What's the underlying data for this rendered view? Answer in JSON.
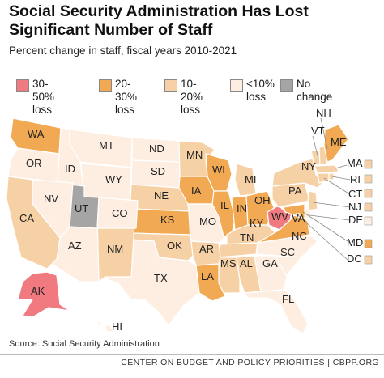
{
  "title": "Social Security Administration Has Lost Significant Number of Staff",
  "subtitle": "Percent change in staff, fiscal years 2010-2021",
  "legend": [
    {
      "line1": "30-50%",
      "line2": "loss",
      "color": "#f07a80"
    },
    {
      "line1": "20-30%",
      "line2": "loss",
      "color": "#f2a954"
    },
    {
      "line1": "10-20%",
      "line2": "loss",
      "color": "#f7d1a6"
    },
    {
      "line1": "<10%",
      "line2": "loss",
      "color": "#fdeee1"
    },
    {
      "line1": "No change",
      "line2": "",
      "color": "#a5a5a5"
    }
  ],
  "colors": {
    "c30_50": "#f07a80",
    "c20_30": "#f2a954",
    "c10_20": "#f7d1a6",
    "clt10": "#fdeee1",
    "nochange": "#a5a5a5"
  },
  "states": {
    "WA": "20-30",
    "OR": "<10",
    "ID": "<10",
    "MT": "<10",
    "WY": "<10",
    "ND": "<10",
    "SD": "<10",
    "NE": "10-20",
    "KS": "20-30",
    "MN": "10-20",
    "IA": "20-30",
    "MO": "<10",
    "WI": "20-30",
    "IL": "20-30",
    "MI": "10-20",
    "IN": "20-30",
    "OH": "20-30",
    "KY": "10-20",
    "WV": "30-50",
    "VA": "20-30",
    "NC": "<10",
    "SC": "<10",
    "TN": "10-20",
    "GA": "<10",
    "AL": "10-20",
    "MS": "10-20",
    "LA": "20-30",
    "AR": "10-20",
    "OK": "10-20",
    "TX": "<10",
    "NM": "10-20",
    "AZ": "<10",
    "UT": "no change",
    "CO": "<10",
    "NV": "<10",
    "CA": "10-20",
    "AK": "30-50",
    "HI": "<10",
    "FL": "<10",
    "PA": "10-20",
    "NY": "10-20",
    "VT": "10-20",
    "NH": "10-20",
    "ME": "20-30",
    "MA": "10-20",
    "RI": "10-20",
    "CT": "10-20",
    "NJ": "10-20",
    "DE": "<10",
    "MD": "20-30",
    "DC": "10-20"
  },
  "source": "Source: Social Security Administration",
  "footer": "CENTER ON BUDGET AND POLICY PRIORITIES | CBPP.ORG"
}
